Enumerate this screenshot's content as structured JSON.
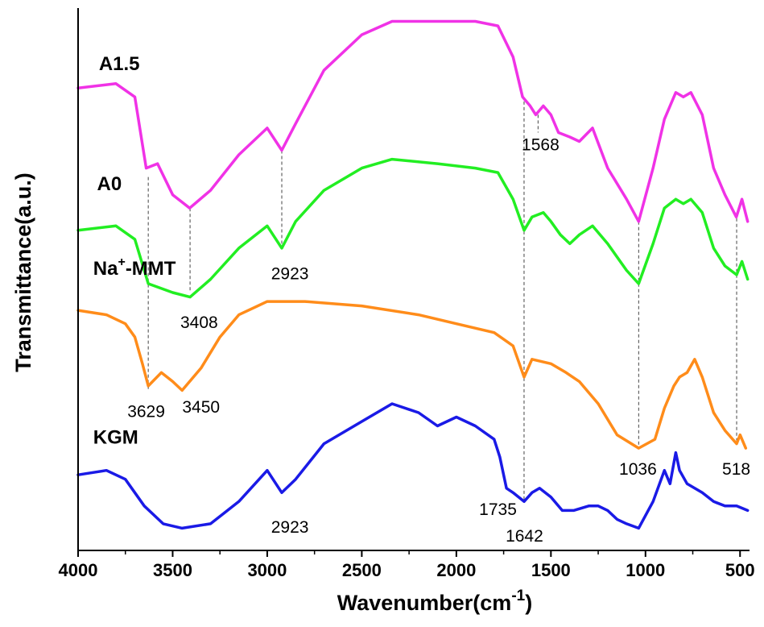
{
  "chart_data": {
    "type": "line",
    "xlabel": "Wavenumber(cm",
    "xlabel_sup": "-1",
    "xlabel_close": ")",
    "ylabel": "Transmittance(a.u.)",
    "xlim": [
      4000,
      450
    ],
    "x_reversed": true,
    "y_ticks_shown": false,
    "grid": false,
    "xticks": [
      "4000",
      "3500",
      "3000",
      "2500",
      "2000",
      "1500",
      "1000",
      "500"
    ],
    "series": [
      {
        "name": "A1.5",
        "color": "#f032e6",
        "points": [
          [
            4000,
            0.8
          ],
          [
            3800,
            0.81
          ],
          [
            3700,
            0.78
          ],
          [
            3640,
            0.62
          ],
          [
            3580,
            0.63
          ],
          [
            3500,
            0.56
          ],
          [
            3410,
            0.53
          ],
          [
            3300,
            0.57
          ],
          [
            3150,
            0.65
          ],
          [
            3000,
            0.71
          ],
          [
            2923,
            0.66
          ],
          [
            2850,
            0.72
          ],
          [
            2700,
            0.84
          ],
          [
            2500,
            0.92
          ],
          [
            2340,
            0.95
          ],
          [
            2100,
            0.95
          ],
          [
            1900,
            0.95
          ],
          [
            1780,
            0.94
          ],
          [
            1700,
            0.87
          ],
          [
            1650,
            0.78
          ],
          [
            1610,
            0.76
          ],
          [
            1580,
            0.74
          ],
          [
            1540,
            0.76
          ],
          [
            1500,
            0.74
          ],
          [
            1460,
            0.7
          ],
          [
            1400,
            0.69
          ],
          [
            1350,
            0.68
          ],
          [
            1280,
            0.71
          ],
          [
            1200,
            0.62
          ],
          [
            1100,
            0.55
          ],
          [
            1036,
            0.5
          ],
          [
            960,
            0.62
          ],
          [
            900,
            0.73
          ],
          [
            840,
            0.79
          ],
          [
            800,
            0.78
          ],
          [
            760,
            0.79
          ],
          [
            700,
            0.74
          ],
          [
            640,
            0.62
          ],
          [
            580,
            0.56
          ],
          [
            520,
            0.51
          ],
          [
            490,
            0.55
          ],
          [
            460,
            0.5
          ]
        ]
      },
      {
        "name": "A0",
        "color": "#22ee22",
        "points": [
          [
            4000,
            0.48
          ],
          [
            3800,
            0.49
          ],
          [
            3700,
            0.46
          ],
          [
            3629,
            0.36
          ],
          [
            3500,
            0.34
          ],
          [
            3408,
            0.33
          ],
          [
            3300,
            0.37
          ],
          [
            3150,
            0.44
          ],
          [
            3000,
            0.49
          ],
          [
            2923,
            0.44
          ],
          [
            2850,
            0.5
          ],
          [
            2700,
            0.57
          ],
          [
            2500,
            0.62
          ],
          [
            2340,
            0.64
          ],
          [
            2100,
            0.63
          ],
          [
            1900,
            0.62
          ],
          [
            1780,
            0.61
          ],
          [
            1700,
            0.55
          ],
          [
            1642,
            0.48
          ],
          [
            1600,
            0.51
          ],
          [
            1540,
            0.52
          ],
          [
            1500,
            0.5
          ],
          [
            1450,
            0.47
          ],
          [
            1400,
            0.45
          ],
          [
            1350,
            0.47
          ],
          [
            1280,
            0.49
          ],
          [
            1200,
            0.45
          ],
          [
            1100,
            0.39
          ],
          [
            1036,
            0.36
          ],
          [
            960,
            0.45
          ],
          [
            900,
            0.53
          ],
          [
            840,
            0.55
          ],
          [
            800,
            0.54
          ],
          [
            760,
            0.55
          ],
          [
            700,
            0.52
          ],
          [
            640,
            0.44
          ],
          [
            580,
            0.4
          ],
          [
            518,
            0.38
          ],
          [
            490,
            0.41
          ],
          [
            460,
            0.37
          ]
        ]
      },
      {
        "name": "Na⁺-MMT",
        "color": "#ff8c1a",
        "points": [
          [
            4000,
            0.3
          ],
          [
            3850,
            0.29
          ],
          [
            3750,
            0.27
          ],
          [
            3700,
            0.24
          ],
          [
            3660,
            0.18
          ],
          [
            3629,
            0.13
          ],
          [
            3560,
            0.16
          ],
          [
            3500,
            0.14
          ],
          [
            3450,
            0.12
          ],
          [
            3350,
            0.17
          ],
          [
            3250,
            0.24
          ],
          [
            3150,
            0.29
          ],
          [
            3000,
            0.32
          ],
          [
            2923,
            0.32
          ],
          [
            2800,
            0.32
          ],
          [
            2500,
            0.31
          ],
          [
            2200,
            0.29
          ],
          [
            2000,
            0.27
          ],
          [
            1800,
            0.25
          ],
          [
            1700,
            0.22
          ],
          [
            1642,
            0.15
          ],
          [
            1600,
            0.19
          ],
          [
            1500,
            0.18
          ],
          [
            1420,
            0.16
          ],
          [
            1350,
            0.14
          ],
          [
            1250,
            0.09
          ],
          [
            1150,
            0.02
          ],
          [
            1036,
            -0.01
          ],
          [
            950,
            0.01
          ],
          [
            900,
            0.08
          ],
          [
            850,
            0.13
          ],
          [
            820,
            0.15
          ],
          [
            780,
            0.16
          ],
          [
            740,
            0.19
          ],
          [
            700,
            0.15
          ],
          [
            640,
            0.07
          ],
          [
            580,
            0.03
          ],
          [
            518,
            0.0
          ],
          [
            500,
            0.02
          ],
          [
            470,
            -0.01
          ]
        ]
      },
      {
        "name": "KGM",
        "color": "#1a1ae6",
        "points": [
          [
            4000,
            -0.07
          ],
          [
            3850,
            -0.06
          ],
          [
            3750,
            -0.08
          ],
          [
            3650,
            -0.14
          ],
          [
            3550,
            -0.18
          ],
          [
            3450,
            -0.19
          ],
          [
            3300,
            -0.18
          ],
          [
            3150,
            -0.13
          ],
          [
            3000,
            -0.06
          ],
          [
            2923,
            -0.11
          ],
          [
            2850,
            -0.08
          ],
          [
            2700,
            0.0
          ],
          [
            2500,
            0.05
          ],
          [
            2340,
            0.09
          ],
          [
            2200,
            0.07
          ],
          [
            2100,
            0.04
          ],
          [
            2000,
            0.06
          ],
          [
            1900,
            0.04
          ],
          [
            1800,
            0.01
          ],
          [
            1770,
            -0.03
          ],
          [
            1735,
            -0.1
          ],
          [
            1700,
            -0.11
          ],
          [
            1642,
            -0.13
          ],
          [
            1600,
            -0.11
          ],
          [
            1560,
            -0.1
          ],
          [
            1500,
            -0.12
          ],
          [
            1440,
            -0.15
          ],
          [
            1380,
            -0.15
          ],
          [
            1300,
            -0.14
          ],
          [
            1250,
            -0.14
          ],
          [
            1200,
            -0.15
          ],
          [
            1150,
            -0.17
          ],
          [
            1100,
            -0.18
          ],
          [
            1036,
            -0.19
          ],
          [
            960,
            -0.13
          ],
          [
            900,
            -0.06
          ],
          [
            870,
            -0.09
          ],
          [
            840,
            -0.02
          ],
          [
            820,
            -0.06
          ],
          [
            780,
            -0.09
          ],
          [
            700,
            -0.11
          ],
          [
            640,
            -0.13
          ],
          [
            580,
            -0.14
          ],
          [
            518,
            -0.14
          ],
          [
            460,
            -0.15
          ]
        ]
      }
    ],
    "series_labels": [
      {
        "text": "A1.5",
        "x": 3890,
        "y": 0.84
      },
      {
        "text": "A0",
        "x": 3900,
        "y": 0.57
      },
      {
        "text": "Na",
        "sup": "+",
        "rest": "-MMT",
        "x": 3920,
        "y": 0.38
      },
      {
        "text": "KGM",
        "x": 3920,
        "y": 0.0
      }
    ],
    "annotations": [
      {
        "text": "1568",
        "x": 1555,
        "y": 0.66
      },
      {
        "text": "2923",
        "x": 2880,
        "y": 0.37
      },
      {
        "text": "3408",
        "x": 3360,
        "y": 0.26
      },
      {
        "text": "3629",
        "x": 3640,
        "y": 0.06
      },
      {
        "text": "3450",
        "x": 3350,
        "y": 0.07
      },
      {
        "text": "1036",
        "x": 1040,
        "y": -0.07
      },
      {
        "text": "518",
        "x": 520,
        "y": -0.07
      },
      {
        "text": "2923",
        "x": 2880,
        "y": -0.2
      },
      {
        "text": "1735",
        "x": 1780,
        "y": -0.16
      },
      {
        "text": "1642",
        "x": 1640,
        "y": -0.22
      }
    ],
    "reference_lines": [
      {
        "x": 3629,
        "y_top": 0.6,
        "y_bottom": 0.12
      },
      {
        "x": 3408,
        "y_top": 0.53,
        "y_bottom": 0.34
      },
      {
        "x": 2923,
        "y_top": 0.66,
        "y_bottom": 0.45
      },
      {
        "x": 1642,
        "y_top": 0.77,
        "y_bottom": -0.13
      },
      {
        "x": 1036,
        "y_top": 0.5,
        "y_bottom": -0.01
      },
      {
        "x": 518,
        "y_top": 0.52,
        "y_bottom": 0.0
      },
      {
        "x": 1568,
        "y_top": 0.74,
        "y_bottom": 0.7
      }
    ]
  }
}
